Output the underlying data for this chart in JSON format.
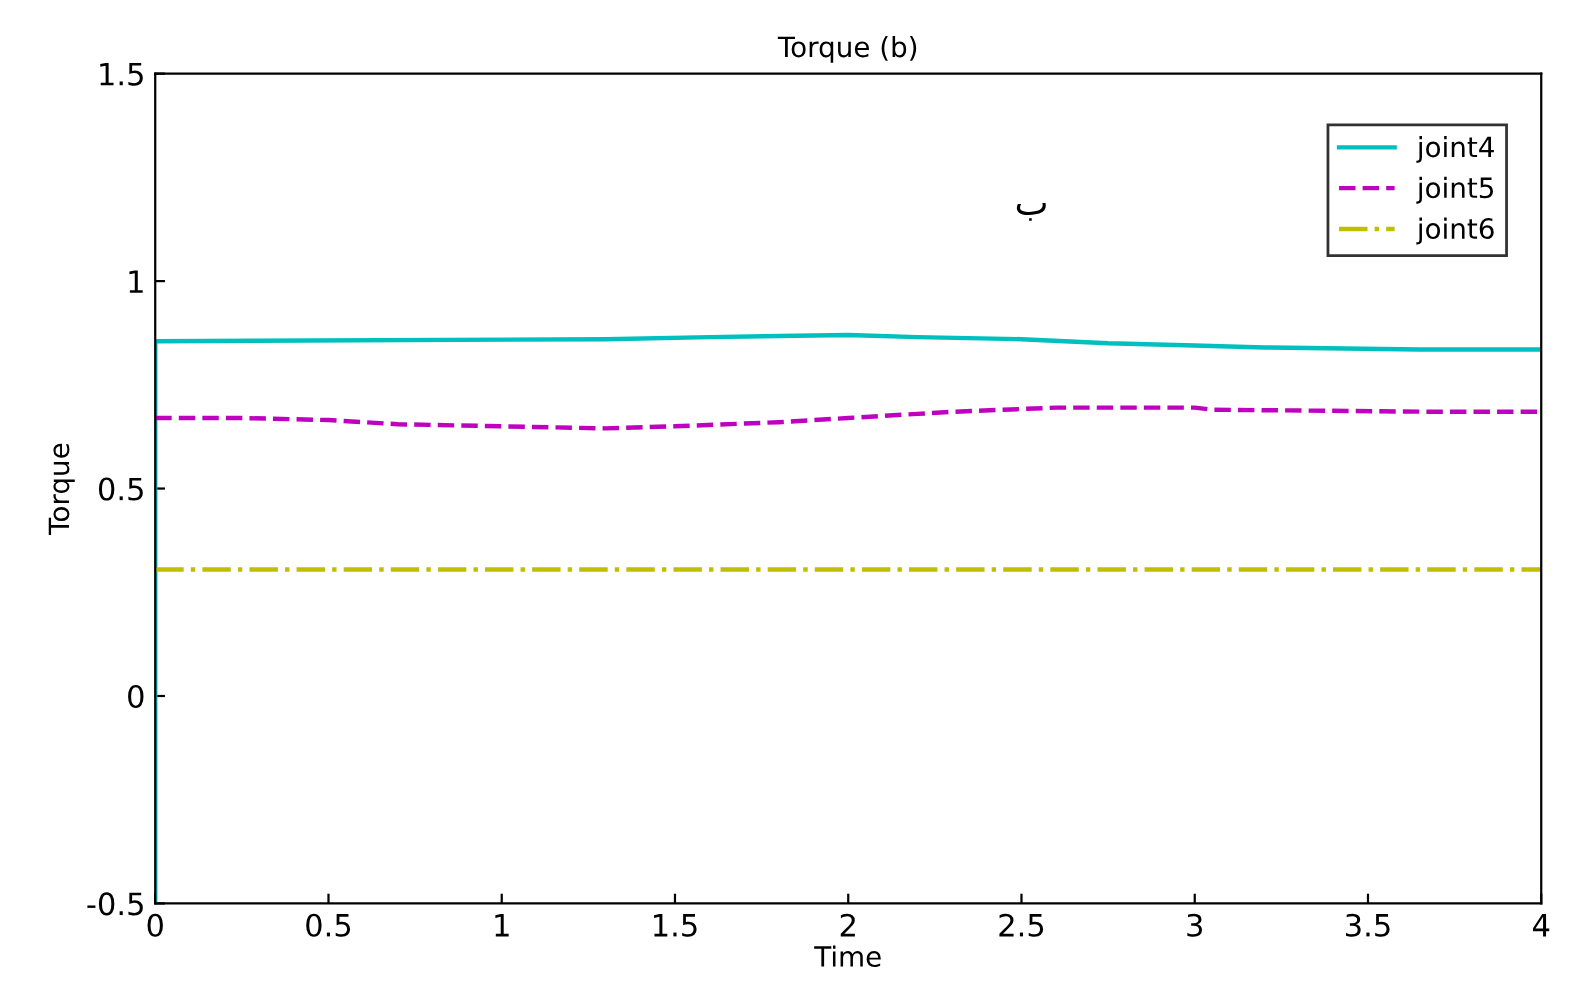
{
  "chart_data": {
    "type": "line",
    "title": "Torque (b)",
    "xlabel": "Time",
    "ylabel": "Torque",
    "annotations": [
      "ب"
    ],
    "series": [
      {
        "name": "joint4",
        "color": "#00bfbf",
        "line_style": "solid",
        "x": [
          0,
          0,
          1.3,
          1.6,
          2.0,
          2.2,
          2.5,
          2.75,
          3.0,
          3.2,
          3.65,
          4
        ],
        "values": [
          -0.5,
          0.855,
          0.86,
          0.865,
          0.87,
          0.865,
          0.86,
          0.85,
          0.845,
          0.84,
          0.835,
          0.835
        ]
      },
      {
        "name": "joint5",
        "color": "#bf00bf",
        "line_style": "dashed",
        "x": [
          0,
          0.25,
          0.5,
          0.7,
          1.0,
          1.3,
          1.5,
          1.8,
          2.0,
          2.2,
          2.3,
          2.6,
          3.0,
          3.05,
          3.7,
          4
        ],
        "values": [
          0.67,
          0.67,
          0.665,
          0.655,
          0.65,
          0.645,
          0.65,
          0.66,
          0.67,
          0.68,
          0.685,
          0.695,
          0.695,
          0.69,
          0.685,
          0.685
        ]
      },
      {
        "name": "joint6",
        "color": "#bfbf00",
        "line_style": "dashdot",
        "x": [
          0,
          4
        ],
        "values": [
          0.305,
          0.305
        ]
      }
    ],
    "xlim": [
      0,
      4
    ],
    "ylim": [
      -0.5,
      1.5
    ],
    "xticks": [
      0,
      0.5,
      1,
      1.5,
      2,
      2.5,
      3,
      3.5,
      4
    ],
    "yticks": [
      -0.5,
      0,
      0.5,
      1,
      1.5
    ],
    "legend": "top right",
    "grid": false
  }
}
